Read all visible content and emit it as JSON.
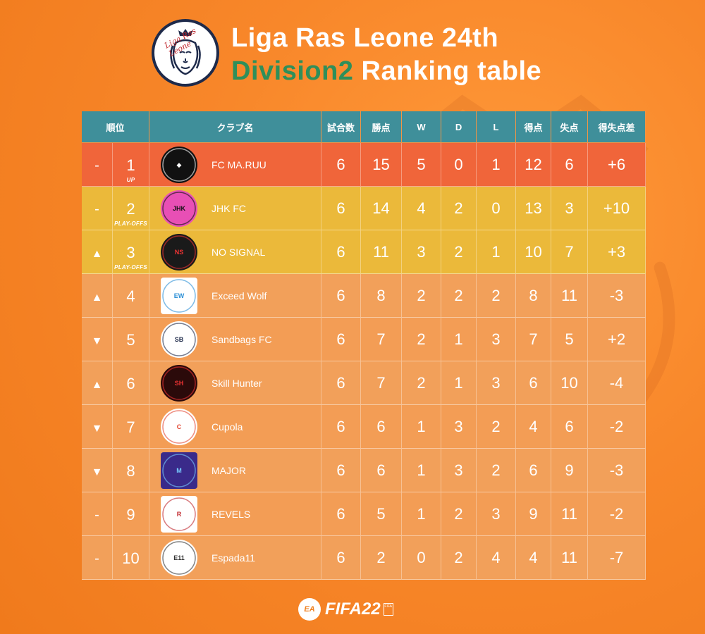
{
  "header": {
    "title_line1": "Liga Ras Leone 24th",
    "title_accent": "Division2",
    "title_rest": " Ranking table",
    "logo_text": "Liga Ras Leone",
    "accent_color": "#2f8f5a"
  },
  "columns": {
    "rank": "順位",
    "club": "クラブ名",
    "played": "試合数",
    "points": "勝点",
    "w": "W",
    "d": "D",
    "l": "L",
    "gf": "得点",
    "ga": "失点",
    "gd": "得失点差"
  },
  "rows": [
    {
      "trend": "-",
      "trend_icon": "dash-icon",
      "pos": "1",
      "note": "UP",
      "club": "FC MA.RUU",
      "emblem": "fc-maruu-emblem",
      "played": "6",
      "points": "15",
      "w": "5",
      "d": "0",
      "l": "1",
      "gf": "12",
      "ga": "6",
      "gd": "+6"
    },
    {
      "trend": "-",
      "trend_icon": "dash-icon",
      "pos": "2",
      "note": "PLAY-OFFS",
      "club": "JHK FC",
      "emblem": "jhk-fc-emblem",
      "played": "6",
      "points": "14",
      "w": "4",
      "d": "2",
      "l": "0",
      "gf": "13",
      "ga": "3",
      "gd": "+10"
    },
    {
      "trend": "▲",
      "trend_icon": "up-arrow-icon",
      "pos": "3",
      "note": "PLAY-OFFS",
      "club": "NO SIGNAL",
      "emblem": "no-signal-emblem",
      "played": "6",
      "points": "11",
      "w": "3",
      "d": "2",
      "l": "1",
      "gf": "10",
      "ga": "7",
      "gd": "+3"
    },
    {
      "trend": "▲",
      "trend_icon": "up-arrow-icon",
      "pos": "4",
      "note": "",
      "club": "Exceed Wolf",
      "emblem": "exceed-wolf-emblem",
      "played": "6",
      "points": "8",
      "w": "2",
      "d": "2",
      "l": "2",
      "gf": "8",
      "ga": "11",
      "gd": "-3"
    },
    {
      "trend": "▼",
      "trend_icon": "down-arrow-icon",
      "pos": "5",
      "note": "",
      "club": "Sandbags FC",
      "emblem": "sandbags-fc-emblem",
      "played": "6",
      "points": "7",
      "w": "2",
      "d": "1",
      "l": "3",
      "gf": "7",
      "ga": "5",
      "gd": "+2"
    },
    {
      "trend": "▲",
      "trend_icon": "up-arrow-icon",
      "pos": "6",
      "note": "",
      "club": "Skill Hunter",
      "emblem": "skill-hunter-emblem",
      "played": "6",
      "points": "7",
      "w": "2",
      "d": "1",
      "l": "3",
      "gf": "6",
      "ga": "10",
      "gd": "-4"
    },
    {
      "trend": "▼",
      "trend_icon": "down-arrow-icon",
      "pos": "7",
      "note": "",
      "club": "Cupola",
      "emblem": "cupola-emblem",
      "played": "6",
      "points": "6",
      "w": "1",
      "d": "3",
      "l": "2",
      "gf": "4",
      "ga": "6",
      "gd": "-2"
    },
    {
      "trend": "▼",
      "trend_icon": "down-arrow-icon",
      "pos": "8",
      "note": "",
      "club": "MAJOR",
      "emblem": "major-emblem",
      "played": "6",
      "points": "6",
      "w": "1",
      "d": "3",
      "l": "2",
      "gf": "6",
      "ga": "9",
      "gd": "-3"
    },
    {
      "trend": "-",
      "trend_icon": "dash-icon",
      "pos": "9",
      "note": "",
      "club": "REVELS",
      "emblem": "revels-emblem",
      "played": "6",
      "points": "5",
      "w": "1",
      "d": "2",
      "l": "3",
      "gf": "9",
      "ga": "11",
      "gd": "-2"
    },
    {
      "trend": "-",
      "trend_icon": "dash-icon",
      "pos": "10",
      "note": "",
      "club": "Espada11",
      "emblem": "espada11-emblem",
      "played": "6",
      "points": "2",
      "w": "0",
      "d": "2",
      "l": "4",
      "gf": "4",
      "ga": "11",
      "gd": "-7"
    }
  ],
  "footer": {
    "ea_label": "EA",
    "game_title": "FIFA22",
    "badge_text": "FIFA"
  }
}
